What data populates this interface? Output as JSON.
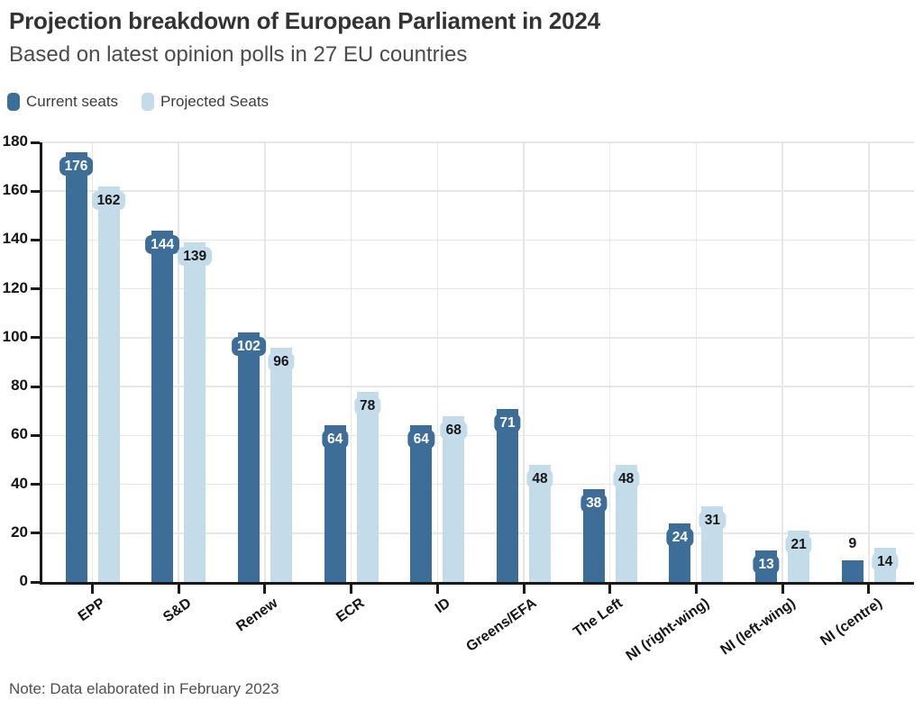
{
  "header": {
    "title": "Projection breakdown of European Parliament in 2024",
    "subtitle": "Based on latest opinion polls in 27 EU countries"
  },
  "legend": [
    {
      "label": "Current seats",
      "color": "#3D6D99"
    },
    {
      "label": "Projected Seats",
      "color": "#C4DCE9"
    }
  ],
  "note": "Note: Data elaborated in February 2023",
  "colors": {
    "current": "#3D6D99",
    "projected": "#C4DCE9",
    "axis": "#1a1a1a",
    "grid": "#e7e7e7",
    "label_on_current": "#ffffff",
    "label_on_projected": "#161616"
  },
  "chart_data": {
    "type": "bar",
    "title": "Projection breakdown of European Parliament in 2024",
    "subtitle": "Based on latest opinion polls in 27 EU countries",
    "categories": [
      "EPP",
      "S&D",
      "Renew",
      "ECR",
      "ID",
      "Greens/EFA",
      "The Left",
      "NI (right-wing)",
      "NI (left-wing)",
      "NI (centre)"
    ],
    "series": [
      {
        "name": "Current seats",
        "color": "#3D6D99",
        "values": [
          176,
          144,
          102,
          64,
          64,
          71,
          38,
          24,
          13,
          9
        ]
      },
      {
        "name": "Projected Seats",
        "color": "#C4DCE9",
        "values": [
          162,
          139,
          96,
          78,
          68,
          48,
          48,
          31,
          21,
          14
        ]
      }
    ],
    "xlabel": "",
    "ylabel": "",
    "ylim": [
      0,
      180
    ],
    "ytick_step": 20,
    "yticks": [
      0,
      20,
      40,
      60,
      80,
      100,
      120,
      140,
      160,
      180
    ],
    "grid": true,
    "legend_position": "top-left",
    "value_labels": true
  }
}
